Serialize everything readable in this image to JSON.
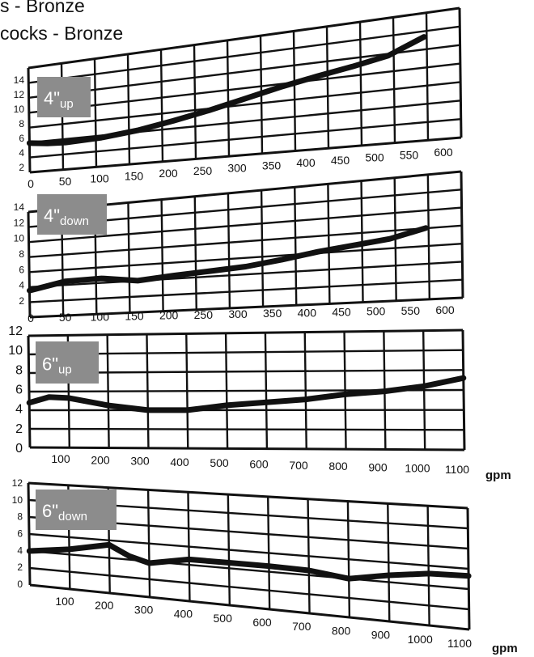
{
  "header": {
    "line1": "s - Bronze",
    "line2": "cocks - Bronze"
  },
  "unit_label": "gpm",
  "chart_data": [
    {
      "type": "line",
      "label_main": "4\"",
      "label_sub": "up",
      "x_ticks": [
        0,
        50,
        100,
        150,
        200,
        250,
        300,
        350,
        400,
        450,
        500,
        550,
        600
      ],
      "y_ticks": [
        2,
        4,
        6,
        8,
        10,
        12,
        14
      ],
      "xlim": [
        0,
        600
      ],
      "ylim": [
        0,
        15
      ],
      "grid": true,
      "series": [
        {
          "x": [
            0,
            25,
            50,
            100,
            150,
            200,
            250,
            300,
            350,
            400,
            450,
            500,
            550
          ],
          "y": [
            4.2,
            3.9,
            3.8,
            4.0,
            4.5,
            5.3,
            6.2,
            7.2,
            8.2,
            9.0,
            9.7,
            10.5,
            12.2
          ]
        }
      ]
    },
    {
      "type": "line",
      "label_main": "4\"",
      "label_sub": "down",
      "x_ticks": [
        0,
        50,
        100,
        150,
        200,
        250,
        300,
        350,
        400,
        450,
        500,
        550,
        600
      ],
      "y_ticks": [
        2,
        4,
        6,
        8,
        10,
        12,
        14
      ],
      "xlim": [
        0,
        600
      ],
      "ylim": [
        0,
        15
      ],
      "grid": true,
      "series": [
        {
          "x": [
            0,
            50,
            100,
            150,
            200,
            250,
            300,
            350,
            400,
            450,
            500,
            550
          ],
          "y": [
            3.8,
            4.8,
            4.9,
            4.3,
            4.7,
            5.0,
            5.3,
            5.9,
            6.6,
            7.1,
            7.6,
            8.6
          ]
        }
      ]
    },
    {
      "type": "line",
      "label_main": "6\"",
      "label_sub": "up",
      "x_ticks": [
        100,
        200,
        300,
        400,
        500,
        600,
        700,
        800,
        900,
        1000,
        1100
      ],
      "y_ticks": [
        0,
        2,
        4,
        6,
        8,
        10,
        12
      ],
      "xlim": [
        0,
        1100
      ],
      "ylim": [
        0,
        12
      ],
      "grid": true,
      "series": [
        {
          "x": [
            0,
            50,
            100,
            200,
            300,
            400,
            500,
            600,
            700,
            800,
            900,
            1000,
            1100
          ],
          "y": [
            4.8,
            5.4,
            5.3,
            4.5,
            4.0,
            4.0,
            4.5,
            4.8,
            5.1,
            5.6,
            5.9,
            6.4,
            7.2
          ]
        }
      ]
    },
    {
      "type": "line",
      "label_main": "6\"",
      "label_sub": "down",
      "x_ticks": [
        100,
        200,
        300,
        400,
        500,
        600,
        700,
        800,
        900,
        1000,
        1100
      ],
      "y_ticks": [
        0,
        2,
        4,
        6,
        8,
        10,
        12
      ],
      "xlim": [
        0,
        1100
      ],
      "ylim": [
        0,
        12
      ],
      "grid": true,
      "series": [
        {
          "x": [
            0,
            100,
            200,
            250,
            300,
            400,
            500,
            600,
            700,
            800,
            900,
            1000,
            1100
          ],
          "y": [
            4.0,
            4.6,
            5.5,
            4.4,
            3.8,
            4.6,
            4.6,
            4.6,
            4.5,
            4.0,
            4.7,
            5.2,
            5.3
          ]
        }
      ]
    }
  ],
  "colors": {
    "grid": "#111111",
    "curve": "#111111",
    "label_box": "#8c8c8c"
  }
}
